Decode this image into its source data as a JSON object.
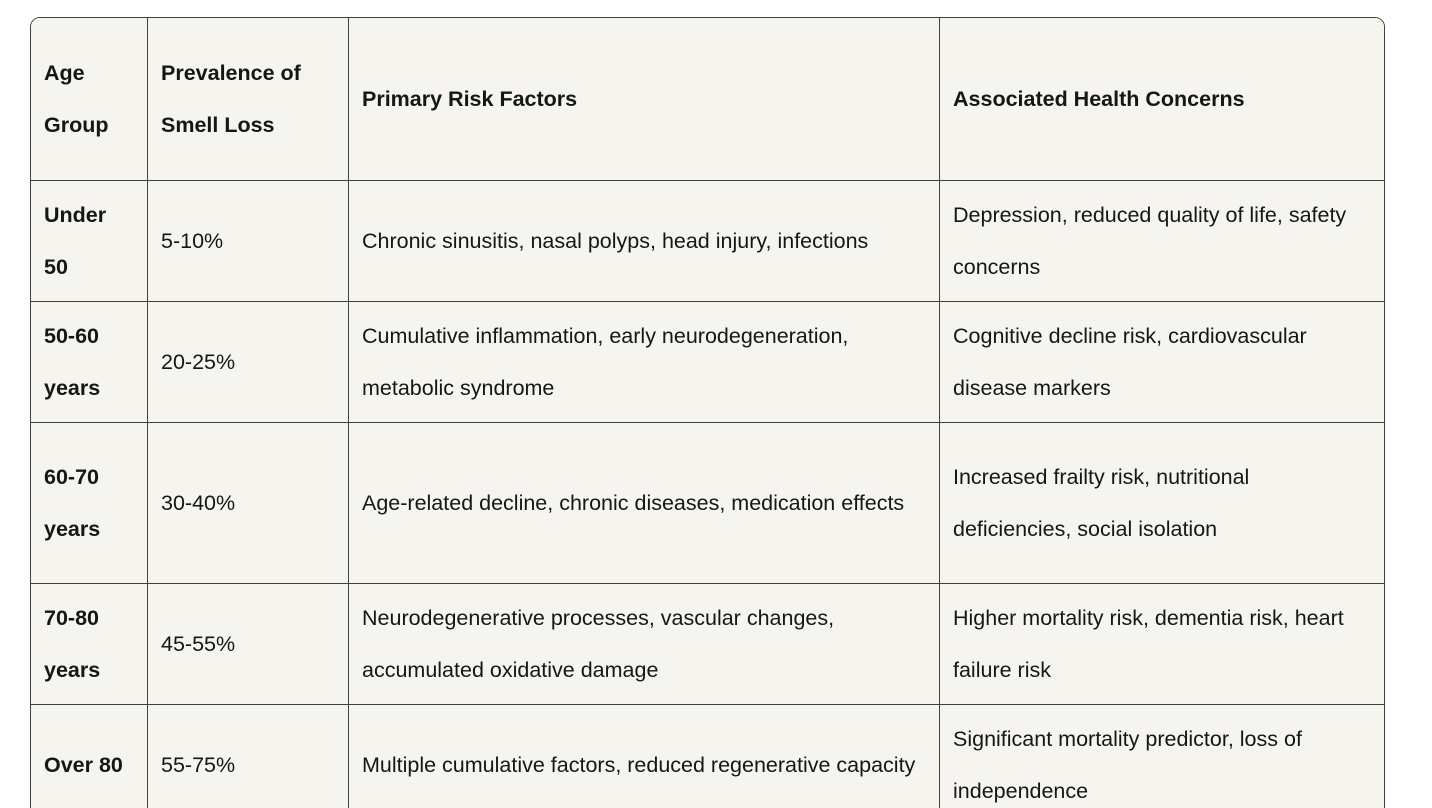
{
  "table": {
    "columns": [
      "Age Group",
      "Prevalence of Smell Loss",
      "Primary Risk Factors",
      "Associated Health Concerns"
    ],
    "rows": [
      {
        "age_group": "Under 50",
        "prevalence": "5-10%",
        "risk_factors": "Chronic sinusitis, nasal polyps, head injury, infections",
        "health_concerns": "Depression, reduced quality of life, safety concerns"
      },
      {
        "age_group": "50-60 years",
        "prevalence": "20-25%",
        "risk_factors": "Cumulative inflammation, early neurodegeneration, metabolic syndrome",
        "health_concerns": "Cognitive decline risk, cardiovascular disease markers"
      },
      {
        "age_group": "60-70 years",
        "prevalence": "30-40%",
        "risk_factors": "Age-related decline, chronic diseases, medication effects",
        "health_concerns": "Increased frailty risk, nutritional deficiencies, social isolation"
      },
      {
        "age_group": "70-80 years",
        "prevalence": "45-55%",
        "risk_factors": "Neurodegenerative processes, vascular changes, accumulated oxidative damage",
        "health_concerns": "Higher mortality risk, dementia risk, heart failure risk"
      },
      {
        "age_group": "Over 80",
        "prevalence": "55-75%",
        "risk_factors": "Multiple cumulative factors, reduced regenerative capacity",
        "health_concerns": "Significant mortality predictor, loss of independence"
      }
    ]
  },
  "colors": {
    "cell_background": "#f5f4ee",
    "border": "#3f3f3f",
    "text": "#161616",
    "page_background": "#ffffff"
  }
}
